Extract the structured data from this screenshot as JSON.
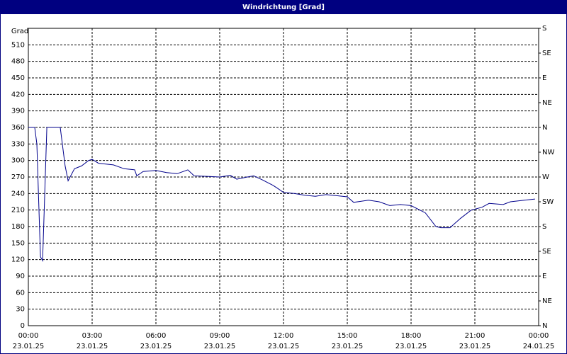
{
  "chart_data": {
    "type": "line",
    "title": "Windrichtung [Grad]",
    "y_label": "Grad",
    "x": [
      0,
      0.3,
      0.4,
      0.57,
      0.67,
      0.87,
      1.5,
      1.73,
      1.87,
      2.17,
      2.5,
      2.83,
      3,
      3.3,
      4,
      4.5,
      5,
      5.1,
      5.4,
      6,
      6.5,
      7,
      7.5,
      7.8,
      8.5,
      9,
      9.5,
      9.8,
      10.3,
      10.6,
      11,
      11.5,
      11.7,
      12,
      12.5,
      13,
      13.5,
      14,
      14.5,
      15,
      15.3,
      16,
      16.5,
      17,
      17.5,
      18,
      18.67,
      19.17,
      19.4,
      19.83,
      20.33,
      20.83,
      21.33,
      21.67,
      22.33,
      22.67,
      23.33,
      23.83
    ],
    "series": [
      {
        "name": "Windrichtung",
        "color": "#00008b",
        "values": [
          360,
          360,
          330,
          125,
          118,
          360,
          360,
          290,
          263,
          285,
          290,
          300,
          302,
          295,
          292,
          285,
          283,
          272,
          280,
          282,
          278,
          276,
          283,
          272,
          271,
          270,
          273,
          266,
          270,
          272,
          265,
          255,
          250,
          242,
          240,
          237,
          235,
          238,
          236,
          234,
          224,
          228,
          225,
          218,
          220,
          218,
          205,
          180,
          178,
          178,
          195,
          210,
          215,
          222,
          220,
          225,
          228,
          230
        ]
      }
    ],
    "xlim": [
      0,
      24
    ],
    "xticks": [
      {
        "value": 0,
        "label": "00:00"
      },
      {
        "value": 3,
        "label": "03:00"
      },
      {
        "value": 6,
        "label": "06:00"
      },
      {
        "value": 9,
        "label": "09:00"
      },
      {
        "value": 12,
        "label": "12:00"
      },
      {
        "value": 15,
        "label": "15:00"
      },
      {
        "value": 18,
        "label": "18:00"
      },
      {
        "value": 21,
        "label": "21:00"
      },
      {
        "value": 24,
        "label": "00:00"
      }
    ],
    "xtick_dates": [
      "23.01.25",
      "23.01.25",
      "23.01.25",
      "23.01.25",
      "23.01.25",
      "23.01.25",
      "23.01.25",
      "23.01.25",
      "24.01.25"
    ],
    "ylim": [
      0,
      540
    ],
    "yticks": [
      0,
      30,
      60,
      90,
      120,
      150,
      180,
      210,
      240,
      270,
      300,
      330,
      360,
      390,
      420,
      450,
      480,
      510
    ],
    "y2lim": [
      0,
      540
    ],
    "y2ticks": [
      {
        "value": 0,
        "label": "N"
      },
      {
        "value": 45,
        "label": "NE"
      },
      {
        "value": 90,
        "label": "E"
      },
      {
        "value": 135,
        "label": "SE"
      },
      {
        "value": 180,
        "label": "S"
      },
      {
        "value": 225,
        "label": "SW"
      },
      {
        "value": 270,
        "label": "W"
      },
      {
        "value": 315,
        "label": "NW"
      },
      {
        "value": 360,
        "label": "N"
      },
      {
        "value": 405,
        "label": "NE"
      },
      {
        "value": 450,
        "label": "E"
      },
      {
        "value": 495,
        "label": "SE"
      },
      {
        "value": 540,
        "label": "S"
      }
    ],
    "grid": true
  }
}
